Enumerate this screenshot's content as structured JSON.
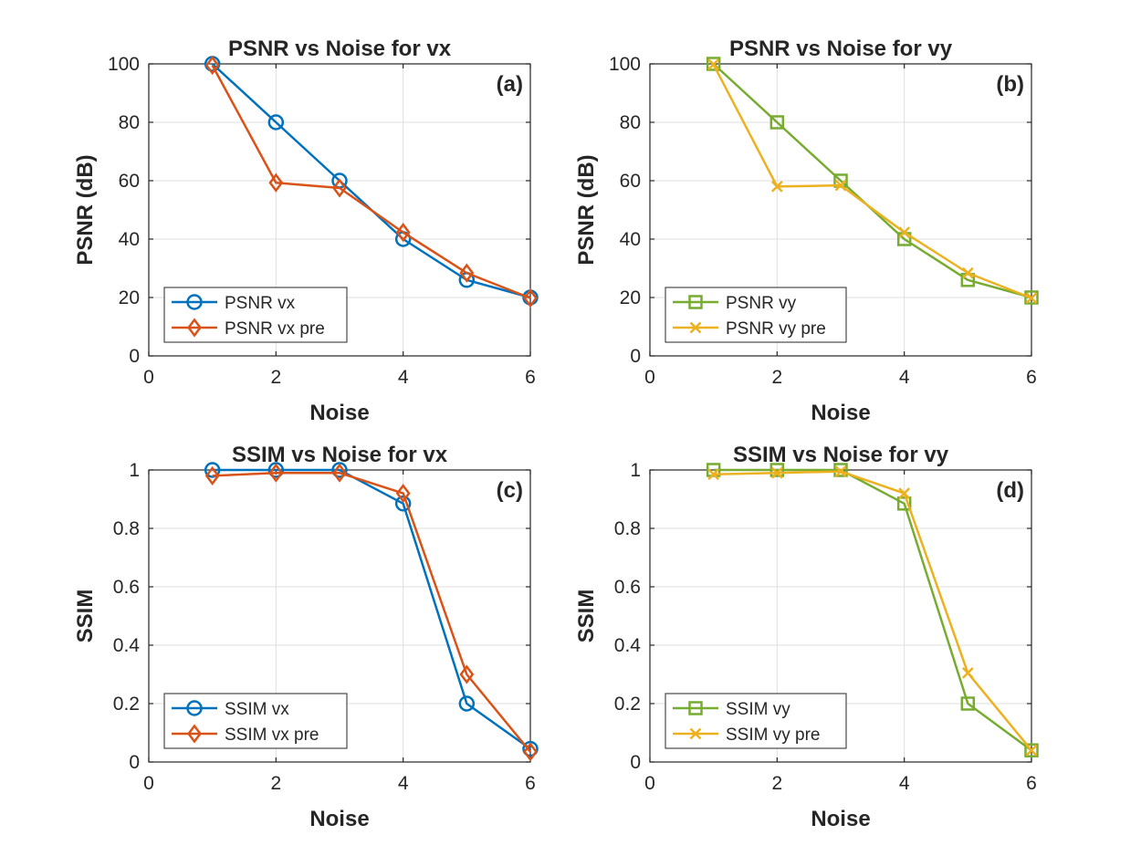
{
  "colors": {
    "blue": "#0072BD",
    "orange": "#D95319",
    "green": "#77AC30",
    "yellow": "#EDB120",
    "axis": "#262626",
    "grid": "#dfdfdf"
  },
  "chart_data": [
    {
      "type": "line",
      "title": "PSNR vs Noise for vx",
      "panel_label": "(a)",
      "xlabel": "Noise",
      "ylabel": "PSNR (dB)",
      "xlim": [
        0,
        6
      ],
      "ylim": [
        0,
        100
      ],
      "xticks": [
        0,
        2,
        4,
        6
      ],
      "yticks": [
        0,
        20,
        40,
        60,
        80,
        100
      ],
      "grid": true,
      "legend_position": "bottom-left",
      "x": [
        1,
        2,
        3,
        4,
        5,
        6
      ],
      "series": [
        {
          "name": "PSNR vx",
          "color": "#0072BD",
          "marker": "circle",
          "values": [
            100,
            80,
            60,
            40,
            26,
            20
          ]
        },
        {
          "name": "PSNR vx pre",
          "color": "#D95319",
          "marker": "diamond",
          "values": [
            99.5,
            59.3,
            57.5,
            42.3,
            28.4,
            19.8
          ]
        }
      ]
    },
    {
      "type": "line",
      "title": "PSNR vs Noise for vy",
      "panel_label": "(b)",
      "xlabel": "Noise",
      "ylabel": "PSNR (dB)",
      "xlim": [
        0,
        6
      ],
      "ylim": [
        0,
        100
      ],
      "xticks": [
        0,
        2,
        4,
        6
      ],
      "yticks": [
        0,
        20,
        40,
        60,
        80,
        100
      ],
      "grid": true,
      "legend_position": "bottom-left",
      "x": [
        1,
        2,
        3,
        4,
        5,
        6
      ],
      "series": [
        {
          "name": "PSNR vy",
          "color": "#77AC30",
          "marker": "square",
          "values": [
            100,
            80,
            60,
            40,
            26,
            20
          ]
        },
        {
          "name": "PSNR vy pre",
          "color": "#EDB120",
          "marker": "x",
          "values": [
            99.8,
            58,
            58.4,
            42.3,
            28.4,
            19.8
          ]
        }
      ]
    },
    {
      "type": "line",
      "title": "SSIM vs Noise for vx",
      "panel_label": "(c)",
      "xlabel": "Noise",
      "ylabel": "SSIM",
      "xlim": [
        0,
        6
      ],
      "ylim": [
        0,
        1
      ],
      "xticks": [
        0,
        2,
        4,
        6
      ],
      "yticks": [
        0,
        0.2,
        0.4,
        0.6,
        0.8,
        1
      ],
      "grid": true,
      "legend_position": "bottom-left",
      "x": [
        1,
        2,
        3,
        4,
        5,
        6
      ],
      "series": [
        {
          "name": "SSIM vx",
          "color": "#0072BD",
          "marker": "circle",
          "values": [
            1,
            1,
            1,
            0.885,
            0.2,
            0.045
          ]
        },
        {
          "name": "SSIM vx pre",
          "color": "#D95319",
          "marker": "diamond",
          "values": [
            0.98,
            0.99,
            0.99,
            0.92,
            0.3,
            0.035
          ]
        }
      ]
    },
    {
      "type": "line",
      "title": "SSIM vs Noise for vy",
      "panel_label": "(d)",
      "xlabel": "Noise",
      "ylabel": "SSIM",
      "xlim": [
        0,
        6
      ],
      "ylim": [
        0,
        1
      ],
      "xticks": [
        0,
        2,
        4,
        6
      ],
      "yticks": [
        0,
        0.2,
        0.4,
        0.6,
        0.8,
        1
      ],
      "grid": true,
      "legend_position": "bottom-left",
      "x": [
        1,
        2,
        3,
        4,
        5,
        6
      ],
      "series": [
        {
          "name": "SSIM vy",
          "color": "#77AC30",
          "marker": "square",
          "values": [
            1,
            1,
            1,
            0.885,
            0.2,
            0.04
          ]
        },
        {
          "name": "SSIM vy pre",
          "color": "#EDB120",
          "marker": "x",
          "values": [
            0.985,
            0.99,
            0.995,
            0.92,
            0.305,
            0.04
          ]
        }
      ]
    }
  ]
}
